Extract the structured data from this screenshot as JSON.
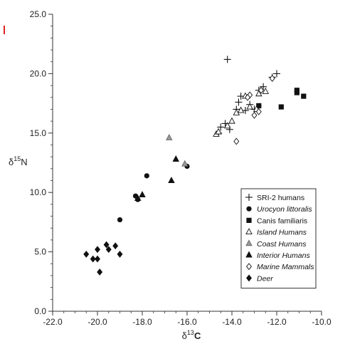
{
  "chart_data": {
    "type": "scatter",
    "title": "",
    "xlabel_base": "δ",
    "xlabel_sup": "13",
    "xlabel_tail": "C",
    "ylabel_base": "δ",
    "ylabel_sup": "15",
    "ylabel_tail": "N",
    "xlim": [
      -22.0,
      -10.0
    ],
    "ylim": [
      0.0,
      25.0
    ],
    "x_ticks": [
      -22.0,
      -20.0,
      -18.0,
      -16.0,
      -14.0,
      -12.0,
      -10.0
    ],
    "x_tick_labels": [
      "-22.0",
      "-20.0",
      "-18.0",
      "-16.0",
      "-14.0",
      "-12.0",
      "-10.0"
    ],
    "y_ticks": [
      0.0,
      5.0,
      10.0,
      15.0,
      20.0,
      25.0
    ],
    "y_tick_labels": [
      "0.0",
      "5.0",
      "10.0",
      "15.0",
      "20.0",
      "25.0"
    ],
    "grid": false,
    "legend_position": "bottom-right",
    "series": [
      {
        "name": "SRI-2 humans",
        "italic": false,
        "marker": "plus",
        "points": [
          [
            -14.2,
            21.2
          ],
          [
            -12.0,
            20.0
          ],
          [
            -12.2,
            19.7
          ],
          [
            -12.6,
            18.9
          ],
          [
            -12.8,
            18.6
          ],
          [
            -13.6,
            18.1
          ],
          [
            -13.7,
            17.6
          ],
          [
            -13.8,
            17.0
          ],
          [
            -13.4,
            16.9
          ],
          [
            -13.0,
            17.0
          ],
          [
            -14.5,
            15.5
          ],
          [
            -14.3,
            15.8
          ],
          [
            -14.6,
            15.0
          ],
          [
            -14.1,
            15.3
          ],
          [
            -13.2,
            17.4
          ]
        ]
      },
      {
        "name": "Urocyon littoralis",
        "italic": true,
        "marker": "circle",
        "points": [
          [
            -17.8,
            11.4
          ],
          [
            -18.3,
            9.7
          ],
          [
            -18.2,
            9.4
          ],
          [
            -19.0,
            7.7
          ],
          [
            -16.0,
            12.2
          ]
        ]
      },
      {
        "name": "Canis familiaris",
        "italic": false,
        "marker": "square",
        "points": [
          [
            -11.1,
            18.6
          ],
          [
            -11.1,
            18.4
          ],
          [
            -10.8,
            18.1
          ],
          [
            -11.8,
            17.2
          ],
          [
            -12.8,
            17.3
          ]
        ]
      },
      {
        "name": "Island Humans",
        "italic": true,
        "marker": "triangle-open",
        "points": [
          [
            -14.7,
            14.9
          ],
          [
            -14.6,
            15.1
          ],
          [
            -14.2,
            15.6
          ],
          [
            -14.0,
            16.0
          ],
          [
            -13.8,
            16.7
          ],
          [
            -13.6,
            16.9
          ],
          [
            -13.2,
            17.2
          ],
          [
            -12.9,
            17.0
          ],
          [
            -13.4,
            18.1
          ],
          [
            -12.8,
            18.3
          ],
          [
            -12.5,
            18.5
          ]
        ]
      },
      {
        "name": "Coast Humans",
        "italic": true,
        "marker": "triangle-gray",
        "points": [
          [
            -16.8,
            14.6
          ],
          [
            -16.1,
            12.4
          ]
        ]
      },
      {
        "name": "Interior Humans",
        "italic": true,
        "marker": "triangle-filled",
        "points": [
          [
            -16.5,
            12.8
          ],
          [
            -16.7,
            11.0
          ],
          [
            -18.0,
            9.8
          ],
          [
            -18.2,
            9.5
          ]
        ]
      },
      {
        "name": "Marine Mammals",
        "italic": true,
        "marker": "diamond-open",
        "points": [
          [
            -12.2,
            19.6
          ],
          [
            -12.7,
            18.6
          ],
          [
            -13.2,
            18.2
          ],
          [
            -13.0,
            16.5
          ],
          [
            -12.8,
            16.8
          ],
          [
            -13.8,
            14.3
          ],
          [
            -13.3,
            18.0
          ]
        ]
      },
      {
        "name": "Deer",
        "italic": true,
        "marker": "diamond-filled",
        "points": [
          [
            -20.5,
            4.8
          ],
          [
            -20.2,
            4.4
          ],
          [
            -20.0,
            4.4
          ],
          [
            -20.0,
            5.2
          ],
          [
            -19.6,
            5.6
          ],
          [
            -19.5,
            5.2
          ],
          [
            -19.2,
            5.5
          ],
          [
            -19.0,
            4.8
          ],
          [
            -19.9,
            3.3
          ]
        ]
      }
    ]
  }
}
